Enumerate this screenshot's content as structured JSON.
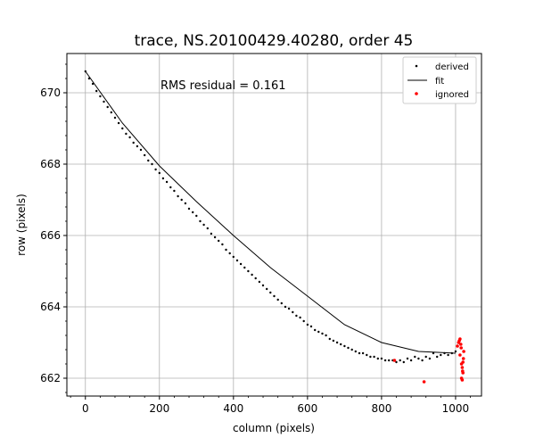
{
  "chart_data": {
    "type": "scatter",
    "title": "trace, NS.20100429.40280, order 45",
    "xlabel": "column (pixels)",
    "ylabel": "row (pixels)",
    "xlim": [
      -50,
      1070
    ],
    "ylim": [
      661.5,
      671.1
    ],
    "xticks": [
      0,
      200,
      400,
      600,
      800,
      1000
    ],
    "yticks": [
      662,
      664,
      666,
      668,
      670
    ],
    "grid": true,
    "annotation": "RMS residual = 0.161",
    "legend": {
      "position": "top-right",
      "entries": [
        "derived",
        "fit",
        "ignored"
      ]
    },
    "colors": {
      "derived": "#000000",
      "fit": "#000000",
      "ignored": "#ff0000",
      "grid": "#b0b0b0"
    },
    "series": [
      {
        "name": "derived",
        "kind": "points",
        "x": [
          0,
          10,
          20,
          30,
          40,
          50,
          60,
          70,
          80,
          90,
          100,
          110,
          120,
          130,
          140,
          150,
          160,
          170,
          180,
          190,
          200,
          210,
          220,
          230,
          240,
          250,
          260,
          270,
          280,
          290,
          300,
          310,
          320,
          330,
          340,
          350,
          360,
          370,
          380,
          390,
          400,
          410,
          420,
          430,
          440,
          450,
          460,
          470,
          480,
          490,
          500,
          510,
          520,
          530,
          540,
          550,
          560,
          570,
          580,
          590,
          600,
          610,
          620,
          630,
          640,
          650,
          660,
          670,
          680,
          690,
          700,
          710,
          720,
          730,
          740,
          750,
          760,
          770,
          780,
          790,
          800,
          810,
          820,
          830,
          840,
          850,
          860,
          870,
          880,
          890,
          900,
          910,
          920,
          930,
          940,
          950,
          960,
          970,
          980,
          990,
          1000
        ],
        "y": [
          670.6,
          670.4,
          670.25,
          670.05,
          669.9,
          669.75,
          669.6,
          669.45,
          669.3,
          669.15,
          669.0,
          668.85,
          668.75,
          668.6,
          668.5,
          668.4,
          668.25,
          668.1,
          668.0,
          667.85,
          667.75,
          667.6,
          667.5,
          667.35,
          667.25,
          667.1,
          667.0,
          666.9,
          666.75,
          666.65,
          666.55,
          666.4,
          666.3,
          666.2,
          666.05,
          665.95,
          665.85,
          665.75,
          665.6,
          665.5,
          665.4,
          665.3,
          665.2,
          665.1,
          665.0,
          664.9,
          664.8,
          664.7,
          664.6,
          664.5,
          664.4,
          664.3,
          664.2,
          664.1,
          664.0,
          663.95,
          663.85,
          663.75,
          663.7,
          663.6,
          663.5,
          663.45,
          663.35,
          663.3,
          663.25,
          663.2,
          663.1,
          663.05,
          663.0,
          662.95,
          662.9,
          662.85,
          662.8,
          662.75,
          662.7,
          662.7,
          662.65,
          662.6,
          662.6,
          662.55,
          662.55,
          662.5,
          662.5,
          662.5,
          662.45,
          662.5,
          662.45,
          662.55,
          662.5,
          662.6,
          662.55,
          662.5,
          662.6,
          662.55,
          662.7,
          662.6,
          662.65,
          662.7,
          662.65,
          662.7,
          662.75
        ]
      },
      {
        "name": "fit",
        "kind": "line",
        "x": [
          0,
          100,
          200,
          300,
          400,
          500,
          600,
          700,
          800,
          900,
          1000
        ],
        "y": [
          670.6,
          669.15,
          667.95,
          666.95,
          666.0,
          665.1,
          664.3,
          663.5,
          663.0,
          662.75,
          662.7
        ]
      },
      {
        "name": "ignored",
        "kind": "points",
        "x": [
          835,
          915,
          1005,
          1008,
          1010,
          1012,
          1014,
          1015,
          1016,
          1018,
          1019,
          1020,
          1021,
          1022,
          1018,
          1016,
          1012,
          1020
        ],
        "y": [
          662.5,
          661.9,
          662.9,
          663.0,
          663.05,
          663.1,
          662.95,
          662.85,
          662.4,
          662.3,
          662.2,
          662.15,
          662.55,
          662.75,
          661.95,
          662.0,
          662.65,
          662.45
        ]
      }
    ]
  }
}
